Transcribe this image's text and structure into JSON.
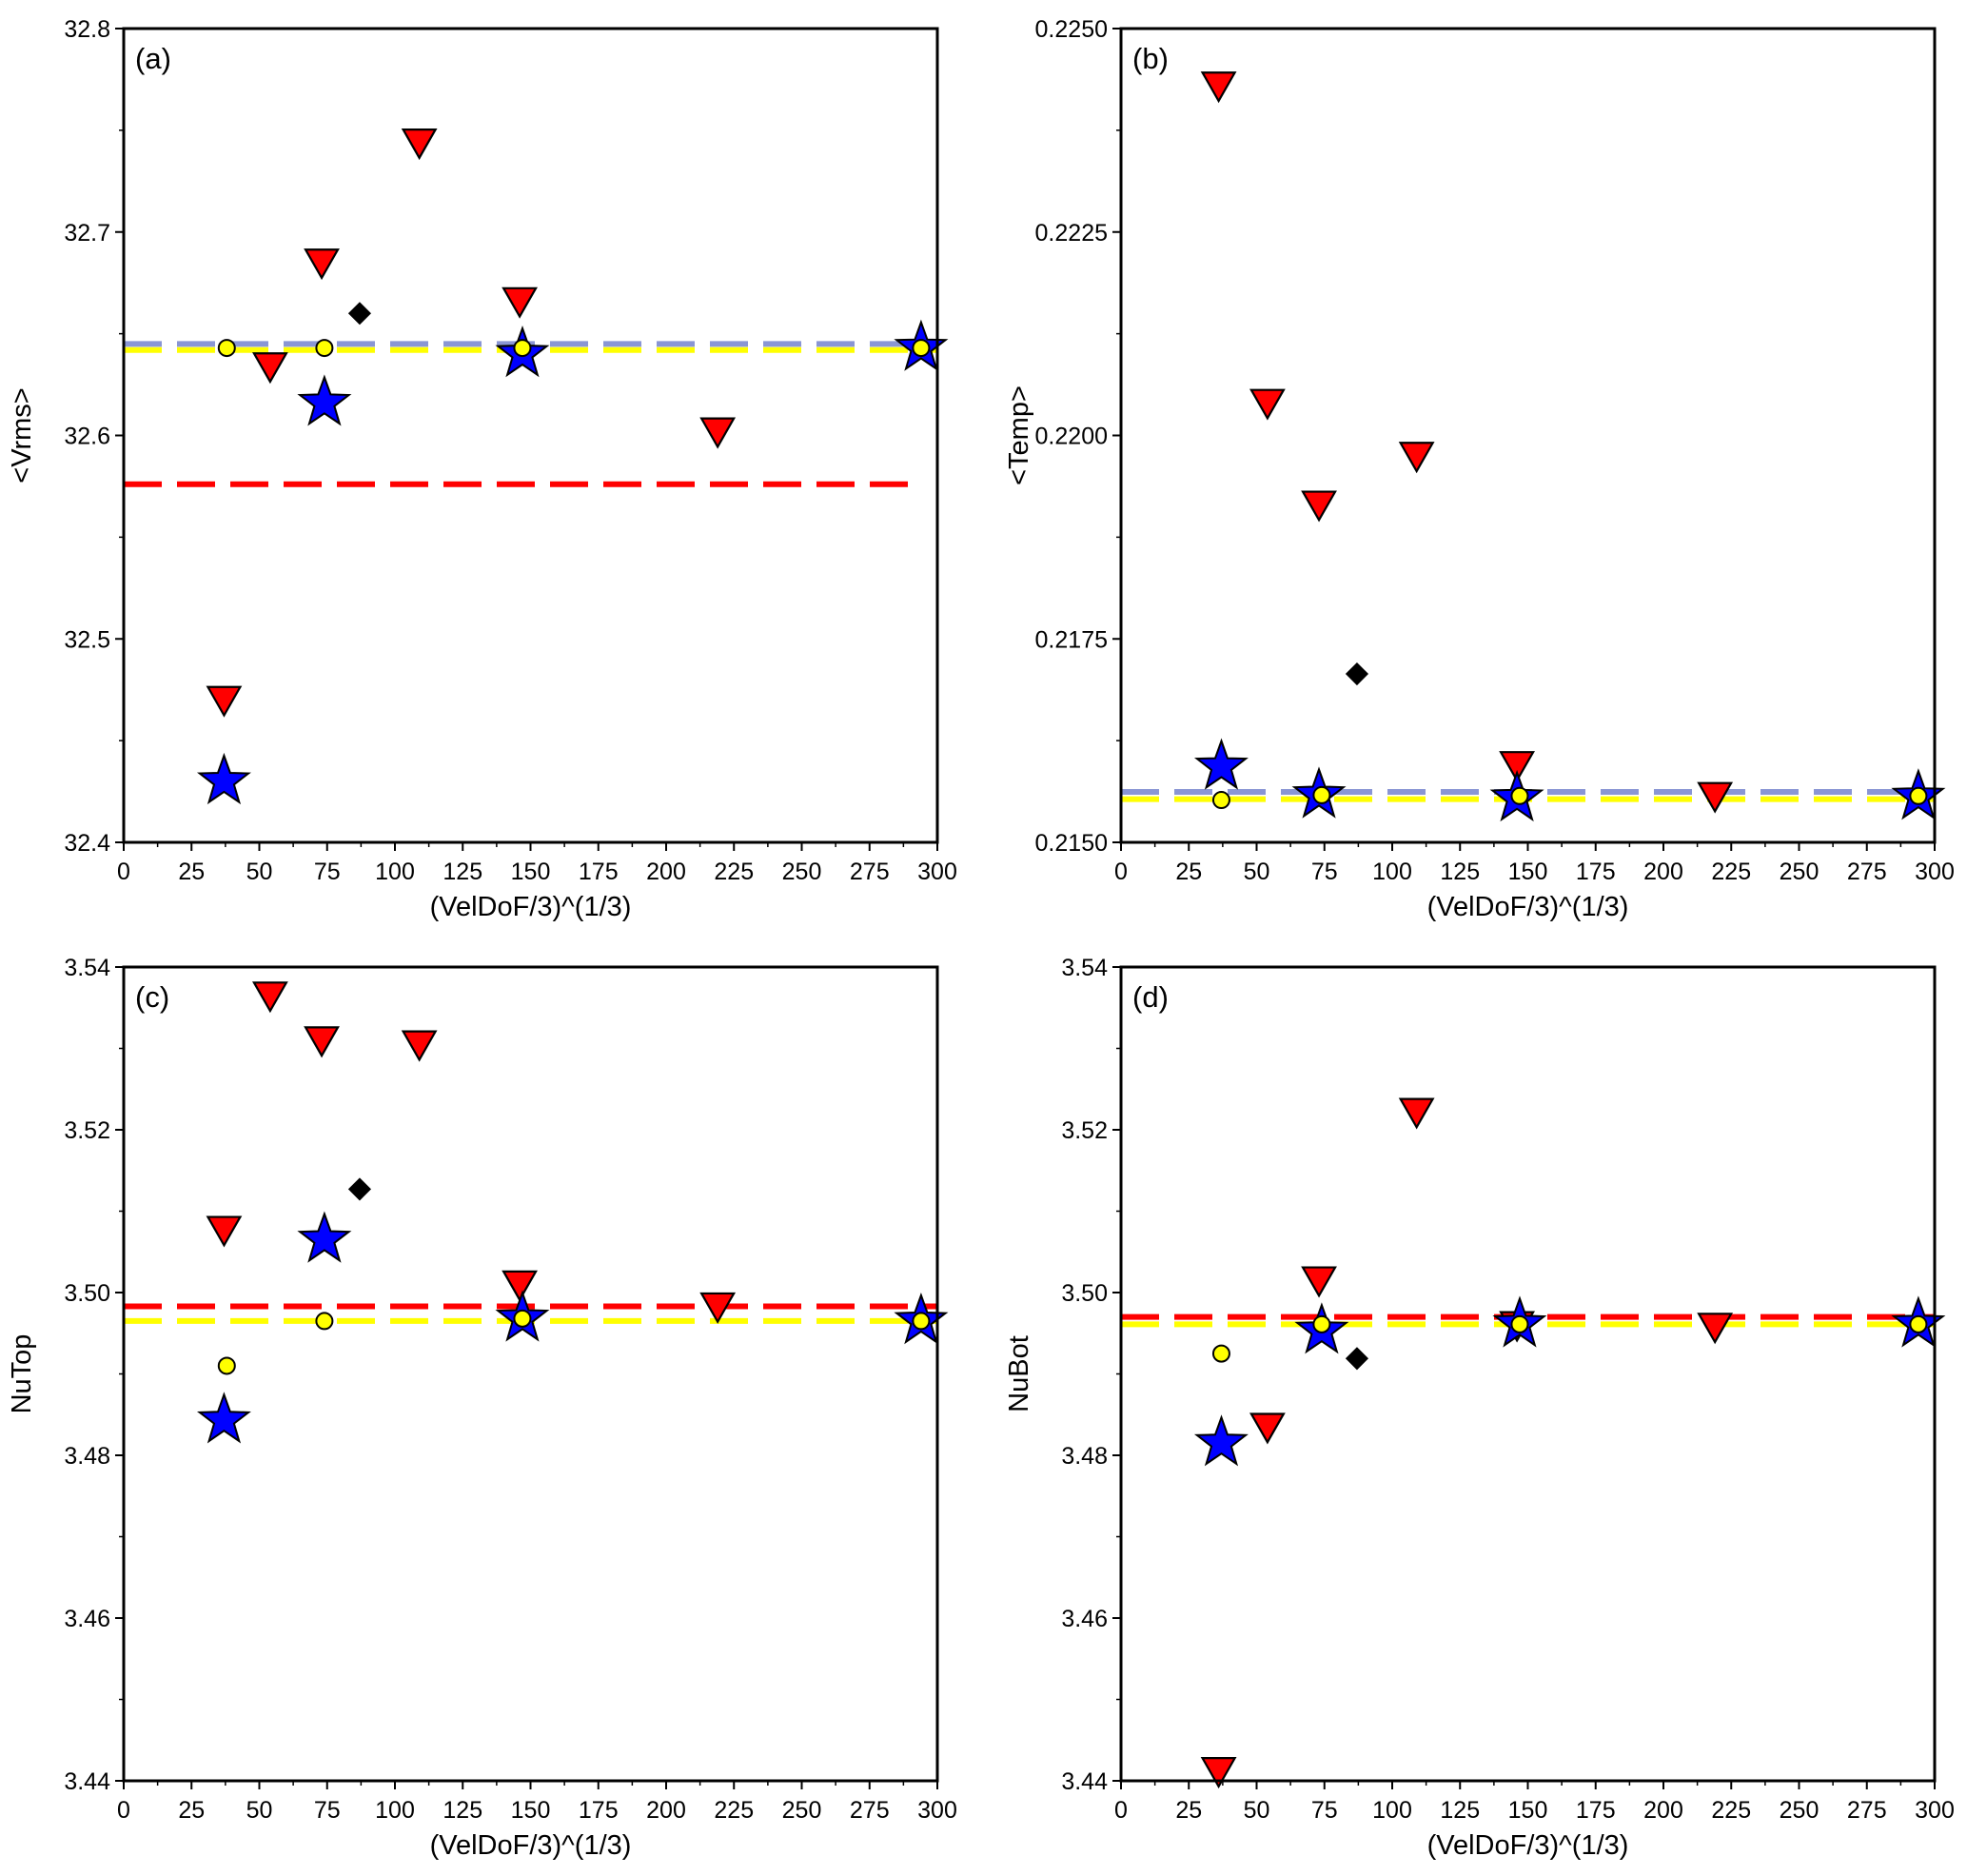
{
  "chart_data": [
    {
      "type": "scatter",
      "panel_label": "(a)",
      "xlabel": "(VelDoF/3)^(1/3)",
      "ylabel": "<Vrms>",
      "xlim": [
        0,
        300
      ],
      "ylim": [
        32.4,
        32.8
      ],
      "xticks": [
        0,
        25,
        50,
        75,
        100,
        125,
        150,
        175,
        200,
        225,
        250,
        275,
        300
      ],
      "xtick_labels": [
        "0",
        "25",
        "50",
        "75",
        "100",
        "125",
        "150",
        "175",
        "200",
        "225",
        "250",
        "275",
        "300"
      ],
      "yticks": [
        32.4,
        32.5,
        32.6,
        32.7,
        32.8
      ],
      "ytick_labels": [
        "32.4",
        "32.5",
        "32.6",
        "32.7",
        "32.8"
      ],
      "grid": false,
      "reference_lines": [
        {
          "style": "dashed",
          "color": "#ff0000",
          "y": 32.576,
          "x": [
            0,
            290
          ]
        },
        {
          "style": "dashed",
          "color": "#8a96d4",
          "y": 32.645,
          "x": [
            0,
            300
          ]
        },
        {
          "style": "dashed",
          "color": "#ffff00",
          "y": 32.642,
          "x": [
            0,
            300
          ]
        }
      ],
      "series": [
        {
          "marker": "triangle-down",
          "color": "#ff0000",
          "x": [
            37,
            54,
            73,
            109,
            146,
            219
          ],
          "y": [
            32.47,
            32.634,
            32.685,
            32.744,
            32.666,
            32.602
          ]
        },
        {
          "marker": "diamond",
          "color": "#000000",
          "x": [
            87
          ],
          "y": [
            32.66
          ]
        },
        {
          "marker": "star",
          "color": "#0000ff",
          "x": [
            37,
            74,
            147,
            294
          ],
          "y": [
            32.43,
            32.616,
            32.64,
            32.643
          ]
        },
        {
          "marker": "circle",
          "color": "#ffff00",
          "x": [
            38,
            74,
            147,
            294
          ],
          "y": [
            32.643,
            32.643,
            32.643,
            32.643
          ]
        }
      ]
    },
    {
      "type": "scatter",
      "panel_label": "(b)",
      "xlabel": "(VelDoF/3)^(1/3)",
      "ylabel": "<Temp>",
      "xlim": [
        0,
        300
      ],
      "ylim": [
        0.215,
        0.225
      ],
      "xticks": [
        0,
        25,
        50,
        75,
        100,
        125,
        150,
        175,
        200,
        225,
        250,
        275,
        300
      ],
      "xtick_labels": [
        "0",
        "25",
        "50",
        "75",
        "100",
        "125",
        "150",
        "175",
        "200",
        "225",
        "250",
        "275",
        "300"
      ],
      "yticks": [
        0.215,
        0.2175,
        0.22,
        0.2225,
        0.225
      ],
      "ytick_labels": [
        "0.2150",
        "0.2175",
        "0.2200",
        "0.2225",
        "0.2250"
      ],
      "grid": false,
      "reference_lines": [
        {
          "style": "dashed",
          "color": "#8a96d4",
          "y": 0.21562,
          "x": [
            0,
            300
          ]
        },
        {
          "style": "dashed",
          "color": "#ffff00",
          "y": 0.21553,
          "x": [
            0,
            300
          ]
        }
      ],
      "series": [
        {
          "marker": "triangle-down",
          "color": "#ff0000",
          "x": [
            36,
            54,
            73,
            109,
            146,
            219
          ],
          "y": [
            0.2243,
            0.2204,
            0.21915,
            0.21975,
            0.21595,
            0.21557
          ]
        },
        {
          "marker": "diamond",
          "color": "#000000",
          "x": [
            87
          ],
          "y": [
            0.21707
          ]
        },
        {
          "marker": "star",
          "color": "#0000ff",
          "x": [
            37,
            73,
            146,
            294
          ],
          "y": [
            0.21593,
            0.21558,
            0.21554,
            0.21556
          ]
        },
        {
          "marker": "circle",
          "color": "#ffff00",
          "x": [
            37,
            74,
            147,
            294
          ],
          "y": [
            0.21552,
            0.21558,
            0.21557,
            0.21557
          ]
        }
      ]
    },
    {
      "type": "scatter",
      "panel_label": "(c)",
      "xlabel": "(VelDoF/3)^(1/3)",
      "ylabel": "NuTop",
      "xlim": [
        0,
        300
      ],
      "ylim": [
        3.44,
        3.54
      ],
      "xticks": [
        0,
        25,
        50,
        75,
        100,
        125,
        150,
        175,
        200,
        225,
        250,
        275,
        300
      ],
      "xtick_labels": [
        "0",
        "25",
        "50",
        "75",
        "100",
        "125",
        "150",
        "175",
        "200",
        "225",
        "250",
        "275",
        "300"
      ],
      "yticks": [
        3.44,
        3.46,
        3.48,
        3.5,
        3.52,
        3.54
      ],
      "ytick_labels": [
        "3.44",
        "3.46",
        "3.48",
        "3.50",
        "3.52",
        "3.54"
      ],
      "grid": false,
      "reference_lines": [
        {
          "style": "dashed",
          "color": "#ff0000",
          "y": 3.4983,
          "x": [
            0,
            300
          ]
        },
        {
          "style": "dashed",
          "color": "#ffff00",
          "y": 3.4965,
          "x": [
            0,
            300
          ]
        }
      ],
      "series": [
        {
          "marker": "triangle-down",
          "color": "#ff0000",
          "x": [
            37,
            54,
            73,
            109,
            146,
            219
          ],
          "y": [
            3.5077,
            3.5365,
            3.531,
            3.5305,
            3.501,
            3.4983
          ]
        },
        {
          "marker": "diamond",
          "color": "#000000",
          "x": [
            87
          ],
          "y": [
            3.5127
          ]
        },
        {
          "marker": "star",
          "color": "#0000ff",
          "x": [
            37,
            74,
            147,
            294
          ],
          "y": [
            3.4843,
            3.5065,
            3.4968,
            3.4965
          ]
        },
        {
          "marker": "circle",
          "color": "#ffff00",
          "x": [
            38,
            74,
            147,
            294
          ],
          "y": [
            3.491,
            3.4965,
            3.4968,
            3.4965
          ]
        }
      ]
    },
    {
      "type": "scatter",
      "panel_label": "(d)",
      "xlabel": "(VelDoF/3)^(1/3)",
      "ylabel": "NuBot",
      "xlim": [
        0,
        300
      ],
      "ylim": [
        3.44,
        3.54
      ],
      "xticks": [
        0,
        25,
        50,
        75,
        100,
        125,
        150,
        175,
        200,
        225,
        250,
        275,
        300
      ],
      "xtick_labels": [
        "0",
        "25",
        "50",
        "75",
        "100",
        "125",
        "150",
        "175",
        "200",
        "225",
        "250",
        "275",
        "300"
      ],
      "yticks": [
        3.44,
        3.46,
        3.48,
        3.5,
        3.52,
        3.54
      ],
      "ytick_labels": [
        "3.44",
        "3.46",
        "3.48",
        "3.50",
        "3.52",
        "3.54"
      ],
      "grid": false,
      "reference_lines": [
        {
          "style": "dashed",
          "color": "#ff0000",
          "y": 3.497,
          "x": [
            0,
            300
          ]
        },
        {
          "style": "dashed",
          "color": "#ffff00",
          "y": 3.4961,
          "x": [
            0,
            300
          ]
        }
      ],
      "series": [
        {
          "marker": "triangle-down",
          "color": "#ff0000",
          "x": [
            36,
            54,
            73,
            109,
            146,
            219
          ],
          "y": [
            3.4412,
            3.4835,
            3.5015,
            3.5222,
            3.496,
            3.4958
          ]
        },
        {
          "marker": "diamond",
          "color": "#000000",
          "x": [
            87
          ],
          "y": [
            3.4919
          ]
        },
        {
          "marker": "star",
          "color": "#0000ff",
          "x": [
            37,
            74,
            147,
            294
          ],
          "y": [
            3.4815,
            3.4953,
            3.4961,
            3.4961
          ]
        },
        {
          "marker": "circle",
          "color": "#ffff00",
          "x": [
            37,
            74,
            147,
            294
          ],
          "y": [
            3.4925,
            3.4961,
            3.4961,
            3.4961
          ]
        }
      ]
    }
  ]
}
